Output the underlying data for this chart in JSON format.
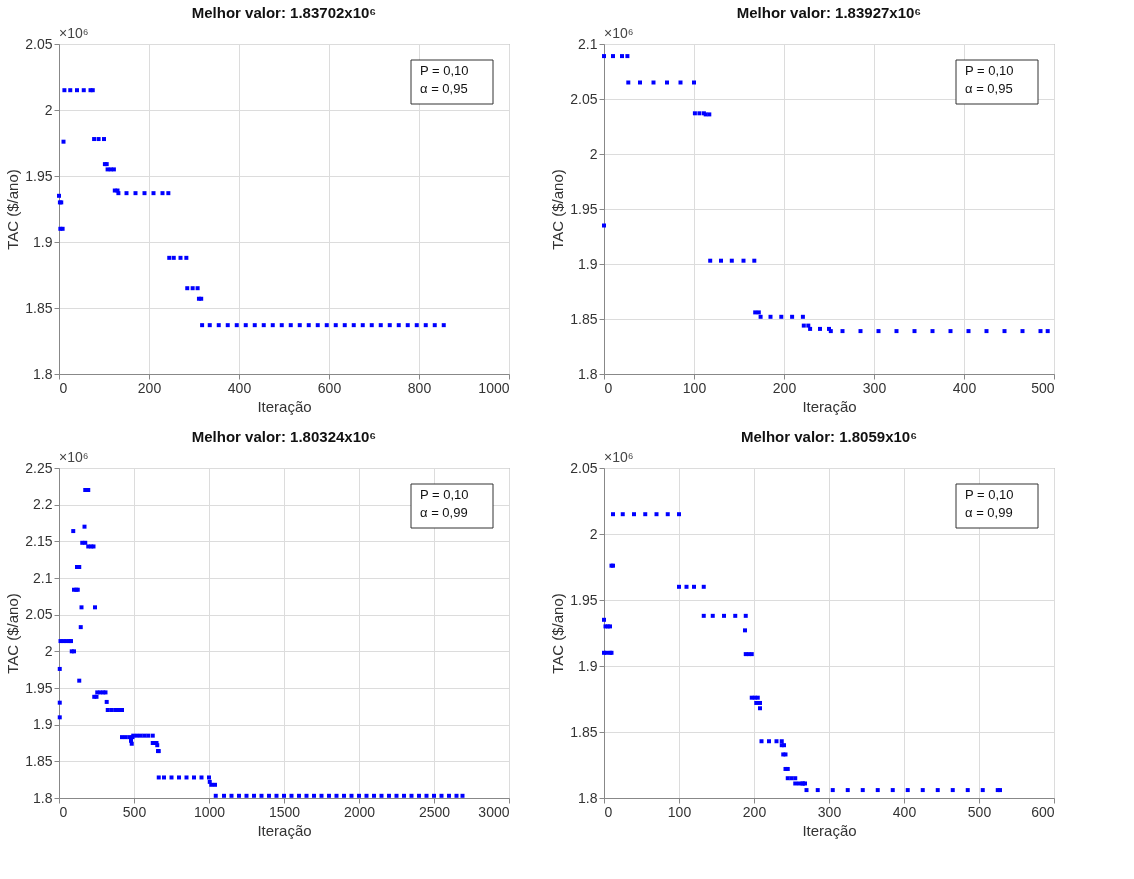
{
  "chart_data": [
    {
      "type": "scatter",
      "title": "Melhor valor: 1.83702x10⁶",
      "xlabel": "Iteração",
      "ylabel": "TAC ($/ano)",
      "annotations": [
        "×10⁶",
        "P = 0,10",
        "α = 0,95"
      ],
      "xlim": [
        0,
        1000
      ],
      "ylim": [
        1.8,
        2.05
      ],
      "xticks": [
        0,
        200,
        400,
        600,
        800,
        1000
      ],
      "yticks": [
        1.8,
        1.85,
        1.9,
        1.95,
        2,
        2.05
      ],
      "grid": true,
      "marker": "square",
      "series": [
        {
          "color": "#0000ff",
          "x": [
            0,
            2,
            5,
            3,
            8,
            10,
            12,
            25,
            40,
            55,
            70,
            75,
            78,
            88,
            100,
            102,
            106,
            108,
            115,
            122,
            124,
            130,
            132,
            150,
            170,
            190,
            210,
            230,
            243,
            245,
            255,
            270,
            283,
            285,
            297,
            308,
            311,
            316,
            318,
            335,
            355,
            375,
            395,
            415,
            435,
            455,
            475,
            495,
            515,
            535,
            555,
            575,
            595,
            615,
            635,
            655,
            675,
            695,
            715,
            735,
            755,
            775,
            795,
            815,
            835,
            855
          ],
          "values": [
            1.935,
            1.93,
            1.93,
            1.91,
            1.91,
            1.976,
            2.015,
            2.015,
            2.015,
            2.015,
            2.015,
            2.015,
            1.978,
            1.978,
            1.978,
            1.959,
            1.959,
            1.955,
            1.955,
            1.955,
            1.939,
            1.939,
            1.937,
            1.937,
            1.937,
            1.937,
            1.937,
            1.937,
            1.937,
            1.888,
            1.888,
            1.888,
            1.888,
            1.865,
            1.865,
            1.865,
            1.857,
            1.857,
            1.837,
            1.837,
            1.837,
            1.837,
            1.837,
            1.837,
            1.837,
            1.837,
            1.837,
            1.837,
            1.837,
            1.837,
            1.837,
            1.837,
            1.837,
            1.837,
            1.837,
            1.837,
            1.837,
            1.837,
            1.837,
            1.837,
            1.837,
            1.837,
            1.837,
            1.837,
            1.837,
            1.837
          ]
        }
      ]
    },
    {
      "type": "scatter",
      "title": "Melhor valor: 1.83927x10⁶",
      "xlabel": "Iteração",
      "ylabel": "TAC ($/ano)",
      "annotations": [
        "×10⁶",
        "P = 0,10",
        "α = 0,95"
      ],
      "xlim": [
        0,
        500
      ],
      "ylim": [
        1.8,
        2.1
      ],
      "xticks": [
        0,
        100,
        200,
        300,
        400,
        500
      ],
      "yticks": [
        1.8,
        1.85,
        1.9,
        1.95,
        2,
        2.05,
        2.1
      ],
      "grid": true,
      "marker": "square",
      "series": [
        {
          "color": "#0000ff",
          "x": [
            0,
            0,
            10,
            20,
            26,
            27,
            40,
            55,
            70,
            85,
            100,
            101,
            106,
            111,
            113,
            117,
            118,
            130,
            142,
            155,
            167,
            168,
            172,
            174,
            185,
            197,
            209,
            221,
            222,
            227,
            229,
            240,
            250,
            252,
            265,
            285,
            305,
            325,
            345,
            365,
            385,
            405,
            425,
            445,
            465,
            485,
            493
          ],
          "values": [
            1.935,
            2.089,
            2.089,
            2.089,
            2.089,
            2.065,
            2.065,
            2.065,
            2.065,
            2.065,
            2.065,
            2.037,
            2.037,
            2.037,
            2.036,
            2.036,
            1.903,
            1.903,
            1.903,
            1.903,
            1.903,
            1.856,
            1.856,
            1.852,
            1.852,
            1.852,
            1.852,
            1.852,
            1.844,
            1.844,
            1.841,
            1.841,
            1.841,
            1.839,
            1.839,
            1.839,
            1.839,
            1.839,
            1.839,
            1.839,
            1.839,
            1.839,
            1.839,
            1.839,
            1.839,
            1.839,
            1.839
          ]
        }
      ]
    },
    {
      "type": "scatter",
      "title": "Melhor valor: 1.80324x10⁶",
      "xlabel": "Iteração",
      "ylabel": "TAC ($/ano)",
      "annotations": [
        "×10⁶",
        "P = 0,10",
        "α = 0,99"
      ],
      "xlim": [
        0,
        3000
      ],
      "ylim": [
        1.8,
        2.25
      ],
      "xticks": [
        0,
        500,
        1000,
        1500,
        2000,
        2500,
        3000
      ],
      "yticks": [
        1.8,
        1.85,
        1.9,
        1.95,
        2,
        2.05,
        2.1,
        2.15,
        2.2,
        2.25
      ],
      "grid": true,
      "marker": "square",
      "series": [
        {
          "color": "#0000ff",
          "x": [
            5,
            5,
            5,
            10,
            30,
            50,
            70,
            80,
            85,
            100,
            95,
            100,
            115,
            125,
            120,
            135,
            135,
            145,
            150,
            155,
            175,
            170,
            175,
            195,
            195,
            215,
            230,
            240,
            235,
            250,
            255,
            275,
            295,
            310,
            318,
            325,
            350,
            375,
            400,
            420,
            420,
            445,
            470,
            490,
            480,
            485,
            495,
            520,
            545,
            570,
            595,
            625,
            625,
            640,
            650,
            655,
            660,
            665,
            665,
            700,
            750,
            800,
            850,
            900,
            950,
            1000,
            1005,
            1015,
            1040,
            1045,
            1100,
            1150,
            1200,
            1250,
            1300,
            1350,
            1400,
            1450,
            1500,
            1550,
            1600,
            1650,
            1700,
            1750,
            1800,
            1850,
            1900,
            1950,
            2000,
            2050,
            2100,
            2150,
            2200,
            2250,
            2300,
            2350,
            2400,
            2450,
            2500,
            2550,
            2600,
            2650,
            2690
          ],
          "values": [
            1.976,
            1.93,
            1.91,
            2.014,
            2.014,
            2.014,
            2.014,
            2.014,
            2.0,
            2.0,
            2.164,
            2.084,
            2.084,
            2.084,
            2.115,
            2.115,
            1.96,
            2.033,
            2.06,
            2.148,
            2.148,
            2.17,
            2.22,
            2.22,
            2.143,
            2.143,
            2.143,
            2.06,
            1.938,
            1.938,
            1.944,
            1.944,
            1.944,
            1.944,
            1.931,
            1.92,
            1.92,
            1.92,
            1.92,
            1.92,
            1.883,
            1.883,
            1.883,
            1.883,
            1.878,
            1.874,
            1.885,
            1.885,
            1.885,
            1.885,
            1.885,
            1.885,
            1.875,
            1.875,
            1.875,
            1.872,
            1.864,
            1.864,
            1.828,
            1.828,
            1.828,
            1.828,
            1.828,
            1.828,
            1.828,
            1.828,
            1.822,
            1.818,
            1.818,
            1.803,
            1.803,
            1.803,
            1.803,
            1.803,
            1.803,
            1.803,
            1.803,
            1.803,
            1.803,
            1.803,
            1.803,
            1.803,
            1.803,
            1.803,
            1.803,
            1.803,
            1.803,
            1.803,
            1.803,
            1.803,
            1.803,
            1.803,
            1.803,
            1.803,
            1.803,
            1.803,
            1.803,
            1.803,
            1.803,
            1.803,
            1.803,
            1.803,
            1.803
          ]
        }
      ]
    },
    {
      "type": "scatter",
      "title": "Melhor valor: 1.8059x10⁶",
      "xlabel": "Iteração",
      "ylabel": "TAC ($/ano)",
      "annotations": [
        "×10⁶",
        "P = 0,10",
        "α = 0,99"
      ],
      "xlim": [
        0,
        600
      ],
      "ylim": [
        1.8,
        2.05
      ],
      "xticks": [
        0,
        100,
        200,
        300,
        400,
        500,
        600
      ],
      "yticks": [
        1.8,
        1.85,
        1.9,
        1.95,
        2,
        2.05
      ],
      "grid": true,
      "marker": "square",
      "series": [
        {
          "color": "#0000ff",
          "x": [
            0,
            2,
            5,
            8,
            0,
            3,
            8,
            10,
            10,
            12,
            12,
            25,
            40,
            55,
            70,
            85,
            100,
            100,
            110,
            120,
            133,
            133,
            145,
            160,
            175,
            189,
            188,
            189,
            193,
            197,
            197,
            201,
            205,
            203,
            208,
            208,
            210,
            220,
            230,
            237,
            237,
            240,
            239,
            242,
            242,
            245,
            245,
            250,
            255,
            255,
            260,
            265,
            265,
            268,
            270,
            285,
            305,
            325,
            345,
            365,
            385,
            405,
            425,
            445,
            465,
            485,
            505,
            525,
            528
          ],
          "values": [
            1.935,
            1.93,
            1.93,
            1.93,
            1.91,
            1.91,
            1.91,
            1.91,
            1.976,
            1.976,
            2.015,
            2.015,
            2.015,
            2.015,
            2.015,
            2.015,
            2.015,
            1.96,
            1.96,
            1.96,
            1.96,
            1.938,
            1.938,
            1.938,
            1.938,
            1.938,
            1.927,
            1.909,
            1.909,
            1.909,
            1.876,
            1.876,
            1.876,
            1.872,
            1.872,
            1.868,
            1.843,
            1.843,
            1.843,
            1.843,
            1.84,
            1.84,
            1.833,
            1.833,
            1.822,
            1.822,
            1.815,
            1.815,
            1.815,
            1.811,
            1.811,
            1.811,
            1.811,
            1.811,
            1.806,
            1.806,
            1.806,
            1.806,
            1.806,
            1.806,
            1.806,
            1.806,
            1.806,
            1.806,
            1.806,
            1.806,
            1.806,
            1.806,
            1.806
          ]
        }
      ]
    }
  ]
}
